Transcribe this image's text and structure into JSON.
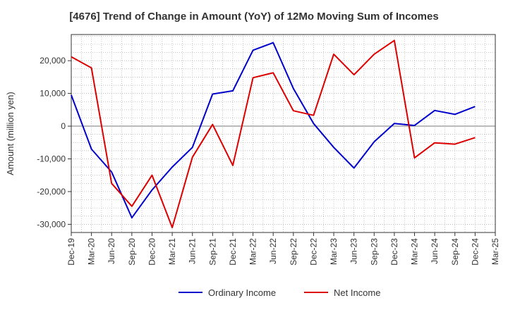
{
  "chart_data": {
    "type": "line",
    "title": "[4676]  Trend of Change in Amount (YoY) of 12Mo Moving Sum of Incomes",
    "ylabel": "Amount (million yen)",
    "xlabel": "",
    "ylim": [
      -32500,
      28000
    ],
    "yticks": [
      -30000,
      -20000,
      -10000,
      0,
      10000,
      20000
    ],
    "ytick_labels": [
      "-30,000",
      "-20,000",
      "-10,000",
      "0",
      "10,000",
      "20,000"
    ],
    "categories": [
      "Dec-19",
      "Mar-20",
      "Jun-20",
      "Sep-20",
      "Dec-20",
      "Mar-21",
      "Jun-21",
      "Sep-21",
      "Dec-21",
      "Mar-22",
      "Jun-22",
      "Sep-22",
      "Dec-22",
      "Mar-23",
      "Jun-23",
      "Sep-23",
      "Dec-23",
      "Mar-24",
      "Jun-24",
      "Sep-24",
      "Dec-24",
      "Mar-25"
    ],
    "grid": true,
    "legend_position": "bottom",
    "series": [
      {
        "name": "Ordinary Income",
        "color": "#0000cc",
        "values": [
          9500,
          -7000,
          -14000,
          -28000,
          -19500,
          -12500,
          -6500,
          9800,
          10800,
          23200,
          25500,
          11500,
          800,
          -6500,
          -12800,
          -4800,
          800,
          200,
          4800,
          3600,
          6000,
          null
        ]
      },
      {
        "name": "Net Income",
        "color": "#dd0000",
        "values": [
          21200,
          17800,
          -17500,
          -24500,
          -15000,
          -31000,
          -9500,
          500,
          -12000,
          14800,
          16300,
          4700,
          3300,
          22000,
          15700,
          22000,
          26200,
          -9700,
          -5100,
          -5500,
          -3500,
          null
        ]
      }
    ]
  }
}
